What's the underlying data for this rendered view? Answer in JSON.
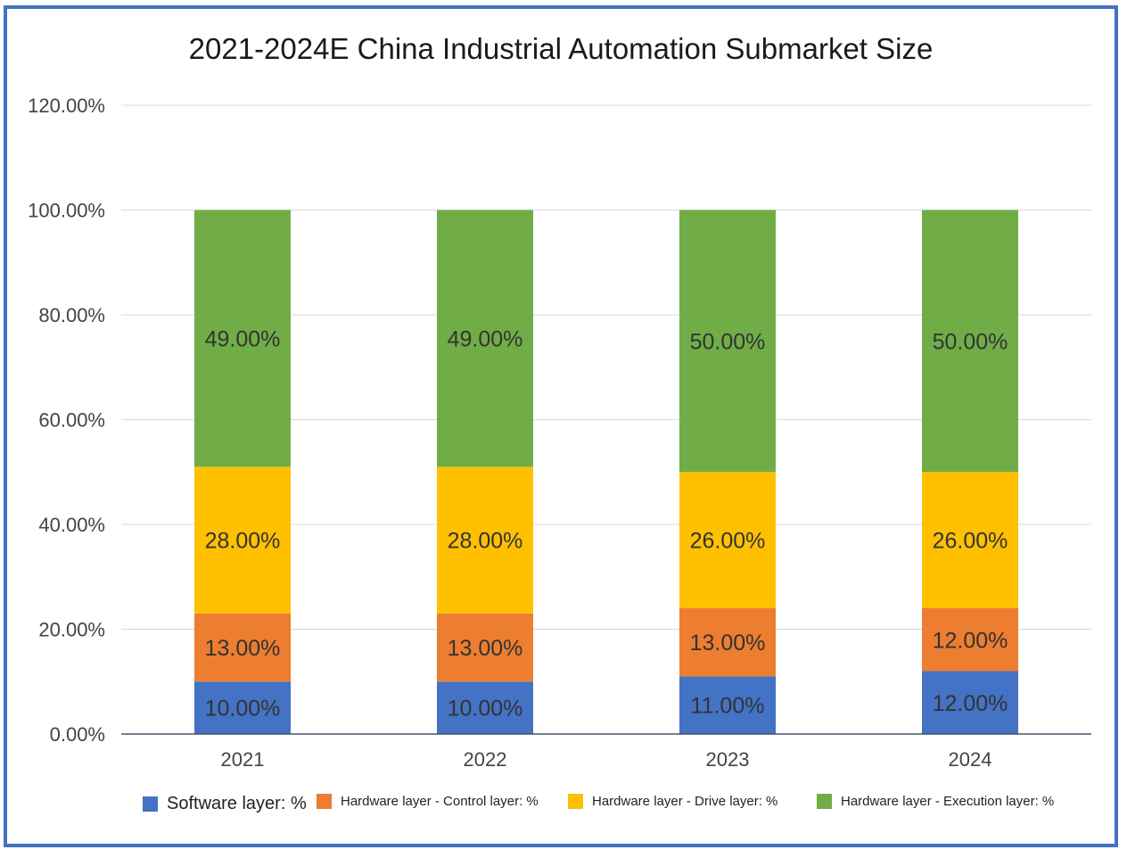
{
  "chart_data": {
    "type": "bar",
    "stacked": true,
    "title": "2021-2024E China Industrial Automation Submarket Size",
    "categories": [
      "2021",
      "2022",
      "2023",
      "2024"
    ],
    "ylim": [
      0,
      120
    ],
    "yticks": [
      "0.00%",
      "20.00%",
      "40.00%",
      "60.00%",
      "80.00%",
      "100.00%",
      "120.00%"
    ],
    "grid": true,
    "legend_position": "bottom",
    "series": [
      {
        "name": "Software layer: %",
        "color": "#4472C4",
        "values": [
          10,
          10,
          11,
          12
        ],
        "labels": [
          "10.00%",
          "10.00%",
          "11.00%",
          "12.00%"
        ]
      },
      {
        "name": "Hardware layer - Control layer: %",
        "color": "#ED7D31",
        "values": [
          13,
          13,
          13,
          12
        ],
        "labels": [
          "13.00%",
          "13.00%",
          "13.00%",
          "12.00%"
        ]
      },
      {
        "name": "Hardware layer - Drive layer: %",
        "color": "#FFC000",
        "values": [
          28,
          28,
          26,
          26
        ],
        "labels": [
          "28.00%",
          "28.00%",
          "26.00%",
          "26.00%"
        ]
      },
      {
        "name": "Hardware layer - Execution layer: %",
        "color": "#70AD47",
        "values": [
          49,
          49,
          50,
          50
        ],
        "labels": [
          "49.00%",
          "49.00%",
          "50.00%",
          "50.00%"
        ]
      }
    ]
  }
}
